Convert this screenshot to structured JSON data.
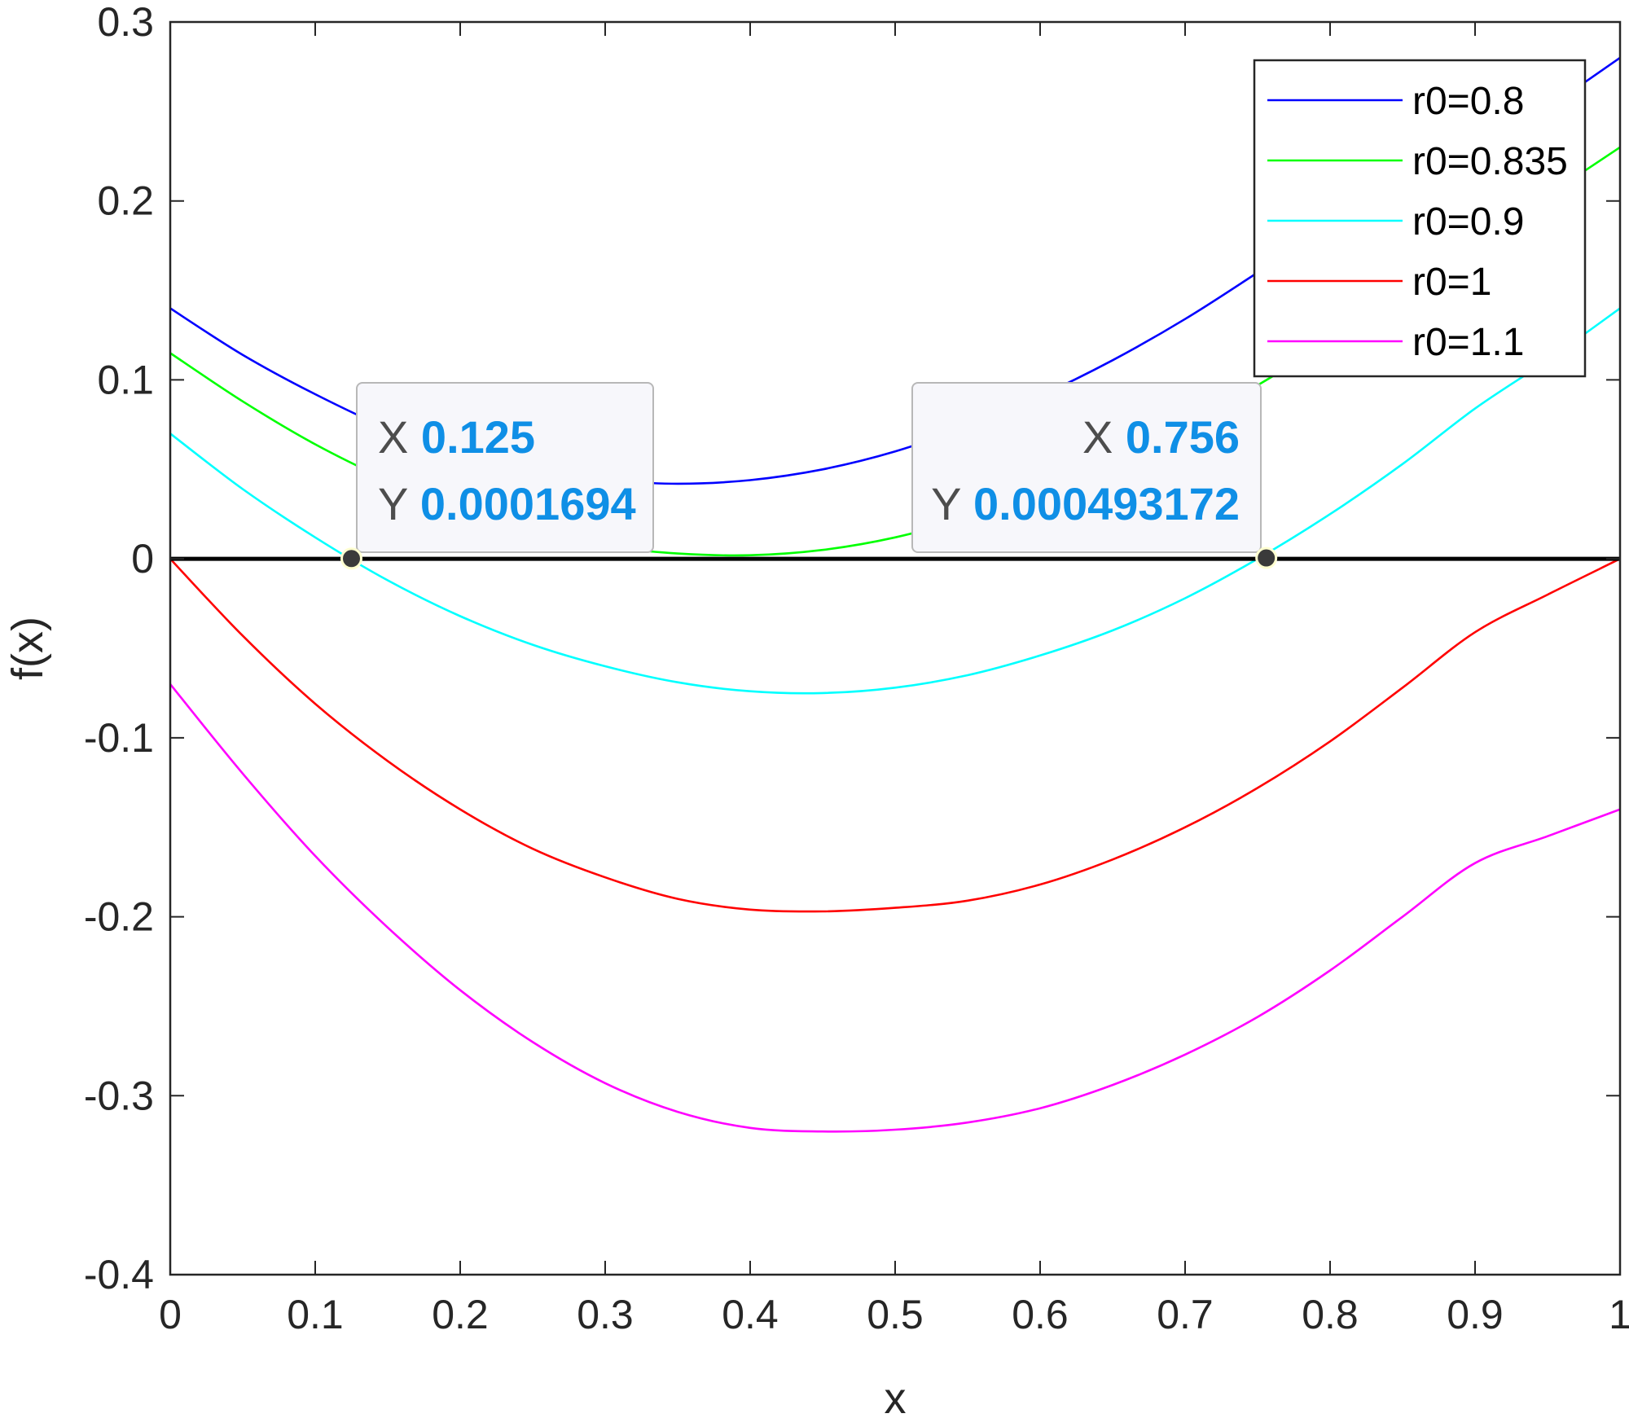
{
  "chart_data": {
    "type": "line",
    "xlabel": "x",
    "ylabel": "f(x)",
    "xlim": [
      0,
      1
    ],
    "ylim": [
      -0.4,
      0.3
    ],
    "xticks": [
      0,
      0.1,
      0.2,
      0.3,
      0.4,
      0.5,
      0.6,
      0.7,
      0.8,
      0.9,
      1
    ],
    "xtick_labels": [
      "0",
      "0.1",
      "0.2",
      "0.3",
      "0.4",
      "0.5",
      "0.6",
      "0.7",
      "0.8",
      "0.9",
      "1"
    ],
    "yticks": [
      0.3,
      0.2,
      0.1,
      0,
      -0.1,
      -0.2,
      -0.3,
      -0.4
    ],
    "ytick_labels": [
      "0.3",
      "0.2",
      "0.1",
      "0",
      "-0.1",
      "-0.2",
      "-0.3",
      "-0.4"
    ],
    "grid": false,
    "legend_position": "top-right",
    "x": [
      0,
      0.05,
      0.1,
      0.15,
      0.2,
      0.25,
      0.3,
      0.35,
      0.4,
      0.45,
      0.5,
      0.55,
      0.6,
      0.65,
      0.7,
      0.75,
      0.8,
      0.85,
      0.9,
      0.95,
      1
    ],
    "series": [
      {
        "name": "r0=0.8",
        "color": "#0000ff",
        "values": [
          0.14,
          0.114,
          0.092,
          0.073,
          0.059,
          0.049,
          0.044,
          0.042,
          0.044,
          0.05,
          0.06,
          0.074,
          0.091,
          0.111,
          0.134,
          0.16,
          0.187,
          0.205,
          0.225,
          0.252,
          0.28
        ]
      },
      {
        "name": "r0=0.835",
        "color": "#00ff00",
        "values": [
          0.115,
          0.088,
          0.064,
          0.044,
          0.027,
          0.015,
          0.007,
          0.003,
          0.002,
          0.005,
          0.012,
          0.023,
          0.037,
          0.054,
          0.074,
          0.097,
          0.122,
          0.15,
          0.176,
          0.203,
          0.23
        ]
      },
      {
        "name": "r0=0.9",
        "color": "#00ffff",
        "values": [
          0.07,
          0.039,
          0.012,
          -0.012,
          -0.032,
          -0.048,
          -0.06,
          -0.069,
          -0.074,
          -0.075,
          -0.072,
          -0.065,
          -0.054,
          -0.04,
          -0.022,
          0,
          0.025,
          0.053,
          0.084,
          0.111,
          0.14
        ]
      },
      {
        "name": "r0=1",
        "color": "#ff0000",
        "values": [
          0,
          -0.043,
          -0.081,
          -0.113,
          -0.14,
          -0.162,
          -0.178,
          -0.19,
          -0.196,
          -0.197,
          -0.195,
          -0.191,
          -0.182,
          -0.168,
          -0.15,
          -0.128,
          -0.102,
          -0.072,
          -0.041,
          -0.02,
          0
        ]
      },
      {
        "name": "r0=1.1",
        "color": "#ff00ff",
        "values": [
          -0.07,
          -0.12,
          -0.166,
          -0.206,
          -0.241,
          -0.27,
          -0.293,
          -0.309,
          -0.318,
          -0.32,
          -0.319,
          -0.315,
          -0.307,
          -0.294,
          -0.277,
          -0.256,
          -0.23,
          -0.2,
          -0.17,
          -0.155,
          -0.14
        ]
      }
    ],
    "reference_line": {
      "y": 0,
      "color": "#000000"
    },
    "datatips": [
      {
        "x_label": "X",
        "x_value": "0.125",
        "y_label": "Y",
        "y_value": "0.0001694",
        "x": 0.125,
        "y": 0.0001694,
        "align": "left"
      },
      {
        "x_label": "X",
        "x_value": "0.756",
        "y_label": "Y",
        "y_value": "0.000493172",
        "x": 0.756,
        "y": 0.000493172,
        "align": "right"
      }
    ]
  }
}
